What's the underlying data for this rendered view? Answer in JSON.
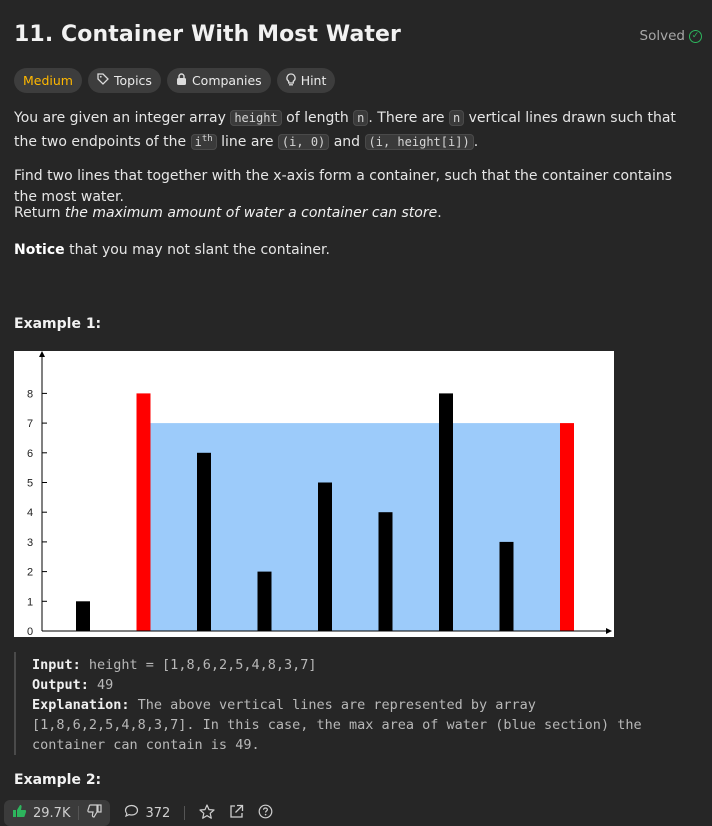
{
  "header": {
    "title": "11. Container With Most Water",
    "solved_label": "Solved",
    "solved_icon": "check-circle-icon"
  },
  "tags": {
    "difficulty": "Medium",
    "topics": "Topics",
    "companies": "Companies",
    "hint": "Hint"
  },
  "description": {
    "p1_a": "You are given an integer array ",
    "p1_code1": "height",
    "p1_b": " of length ",
    "p1_code2": "n",
    "p1_c": ". There are ",
    "p1_code3": "n",
    "p1_d": " vertical lines drawn such that the two endpoints of the ",
    "p1_code4_base": "i",
    "p1_code4_sup": "th",
    "p1_e": " line are ",
    "p1_code5": "(i, 0)",
    "p1_f": " and ",
    "p1_code6": "(i, height[i])",
    "p1_g": ".",
    "p2": "Find two lines that together with the x-axis form a container, such that the container contains the most water.",
    "p3_a": "Return ",
    "p3_em": "the maximum amount of water a container can store",
    "p3_b": ".",
    "p4_bold": "Notice",
    "p4_rest": " that you may not slant the container."
  },
  "example1": {
    "heading": "Example 1:",
    "input_label": "Input:",
    "input_value": " height = [1,8,6,2,5,4,8,3,7]",
    "output_label": "Output:",
    "output_value": " 49",
    "explanation_label": "Explanation:",
    "explanation_line1": " The above vertical lines are represented by array",
    "explanation_line2": "[1,8,6,2,5,4,8,3,7]. In this case, the max area of water (blue section) the",
    "explanation_line3": "container can contain is 49."
  },
  "example2": {
    "heading": "Example 2:"
  },
  "footer": {
    "likes": "29.7K",
    "comments": "372",
    "like_icon": "thumbs-up-icon",
    "dislike_icon": "thumbs-down-icon",
    "comment_icon": "comment-icon",
    "star_icon": "star-icon",
    "share_icon": "share-icon",
    "help_icon": "question-icon"
  },
  "colors": {
    "background": "#262626",
    "medium": "#ffb800",
    "solved": "#2db55d",
    "water": "#9ccbfa",
    "bar": "#000000",
    "highlight_bar": "#ff0000"
  },
  "chart_data": {
    "type": "bar",
    "values": [
      1,
      8,
      6,
      2,
      5,
      4,
      8,
      3,
      7
    ],
    "highlight_indices": [
      1,
      8
    ],
    "water_level": 7,
    "y_ticks": [
      "0",
      "1",
      "2",
      "3",
      "4",
      "5",
      "6",
      "7",
      "8"
    ],
    "ylim": [
      0,
      8
    ]
  }
}
